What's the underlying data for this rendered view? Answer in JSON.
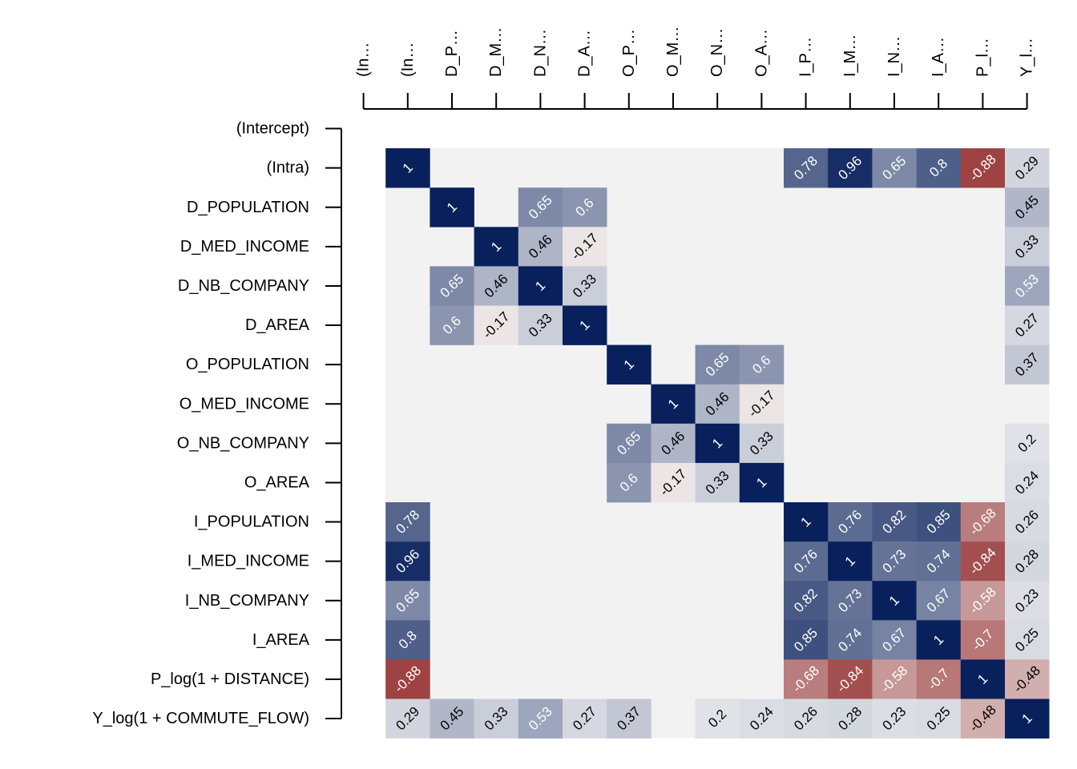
{
  "chart_data": {
    "type": "heatmap",
    "title": "",
    "row_labels": [
      "(Intercept)",
      "(Intra)",
      "D_POPULATION",
      "D_MED_INCOME",
      "D_NB_COMPANY",
      "D_AREA",
      "O_POPULATION",
      "O_MED_INCOME",
      "O_NB_COMPANY",
      "O_AREA",
      "I_POPULATION",
      "I_MED_INCOME",
      "I_NB_COMPANY",
      "I_AREA",
      "P_log(1 + DISTANCE)",
      "Y_log(1 + COMMUTE_FLOW)"
    ],
    "col_labels": [
      "(In…",
      "(In…",
      "D_P…",
      "D_M…",
      "D_N…",
      "D_A…",
      "O_P…",
      "O_M…",
      "O_N…",
      "O_A…",
      "I_P…",
      "I_M…",
      "I_N…",
      "I_A…",
      "P_l…",
      "Y_l…"
    ],
    "color_scale": {
      "negative": "#8b1a1a",
      "zero": "#f2f2f2",
      "positive": "#08205c"
    },
    "blank_color": "#f2f2f2",
    "cells": [
      [
        1,
        1,
        1
      ],
      [
        1,
        10,
        0.78
      ],
      [
        1,
        11,
        0.96
      ],
      [
        1,
        12,
        0.65
      ],
      [
        1,
        13,
        0.8
      ],
      [
        1,
        14,
        -0.88
      ],
      [
        1,
        15,
        0.29
      ],
      [
        2,
        2,
        1
      ],
      [
        2,
        4,
        0.65
      ],
      [
        2,
        5,
        0.6
      ],
      [
        2,
        15,
        0.45
      ],
      [
        3,
        3,
        1
      ],
      [
        3,
        4,
        0.46
      ],
      [
        3,
        5,
        -0.17
      ],
      [
        3,
        15,
        0.33
      ],
      [
        4,
        2,
        0.65
      ],
      [
        4,
        3,
        0.46
      ],
      [
        4,
        4,
        1
      ],
      [
        4,
        5,
        0.33
      ],
      [
        4,
        15,
        0.53
      ],
      [
        5,
        2,
        0.6
      ],
      [
        5,
        3,
        -0.17
      ],
      [
        5,
        4,
        0.33
      ],
      [
        5,
        5,
        1
      ],
      [
        5,
        15,
        0.27
      ],
      [
        6,
        6,
        1
      ],
      [
        6,
        8,
        0.65
      ],
      [
        6,
        9,
        0.6
      ],
      [
        6,
        15,
        0.37
      ],
      [
        7,
        7,
        1
      ],
      [
        7,
        8,
        0.46
      ],
      [
        7,
        9,
        -0.17
      ],
      [
        8,
        6,
        0.65
      ],
      [
        8,
        7,
        0.46
      ],
      [
        8,
        8,
        1
      ],
      [
        8,
        9,
        0.33
      ],
      [
        8,
        15,
        0.2
      ],
      [
        9,
        6,
        0.6
      ],
      [
        9,
        7,
        -0.17
      ],
      [
        9,
        8,
        0.33
      ],
      [
        9,
        9,
        1
      ],
      [
        9,
        15,
        0.24
      ],
      [
        10,
        1,
        0.78
      ],
      [
        10,
        10,
        1
      ],
      [
        10,
        11,
        0.76
      ],
      [
        10,
        12,
        0.82
      ],
      [
        10,
        13,
        0.85
      ],
      [
        10,
        14,
        -0.68
      ],
      [
        10,
        15,
        0.26
      ],
      [
        11,
        1,
        0.96
      ],
      [
        11,
        10,
        0.76
      ],
      [
        11,
        11,
        1
      ],
      [
        11,
        12,
        0.73
      ],
      [
        11,
        13,
        0.74
      ],
      [
        11,
        14,
        -0.84
      ],
      [
        11,
        15,
        0.28
      ],
      [
        12,
        1,
        0.65
      ],
      [
        12,
        10,
        0.82
      ],
      [
        12,
        11,
        0.73
      ],
      [
        12,
        12,
        1
      ],
      [
        12,
        13,
        0.67
      ],
      [
        12,
        14,
        -0.58
      ],
      [
        12,
        15,
        0.23
      ],
      [
        13,
        1,
        0.8
      ],
      [
        13,
        10,
        0.85
      ],
      [
        13,
        11,
        0.74
      ],
      [
        13,
        12,
        0.67
      ],
      [
        13,
        13,
        1
      ],
      [
        13,
        14,
        -0.7
      ],
      [
        13,
        15,
        0.25
      ],
      [
        14,
        1,
        -0.88
      ],
      [
        14,
        10,
        -0.68
      ],
      [
        14,
        11,
        -0.84
      ],
      [
        14,
        12,
        -0.58
      ],
      [
        14,
        13,
        -0.7
      ],
      [
        14,
        14,
        1
      ],
      [
        14,
        15,
        -0.48
      ],
      [
        15,
        1,
        0.29
      ],
      [
        15,
        2,
        0.45
      ],
      [
        15,
        3,
        0.33
      ],
      [
        15,
        4,
        0.53
      ],
      [
        15,
        5,
        0.27
      ],
      [
        15,
        6,
        0.37
      ],
      [
        15,
        8,
        0.2
      ],
      [
        15,
        9,
        0.24
      ],
      [
        15,
        10,
        0.26
      ],
      [
        15,
        11,
        0.28
      ],
      [
        15,
        12,
        0.23
      ],
      [
        15,
        13,
        0.25
      ],
      [
        15,
        14,
        -0.48
      ],
      [
        15,
        15,
        1
      ]
    ]
  }
}
